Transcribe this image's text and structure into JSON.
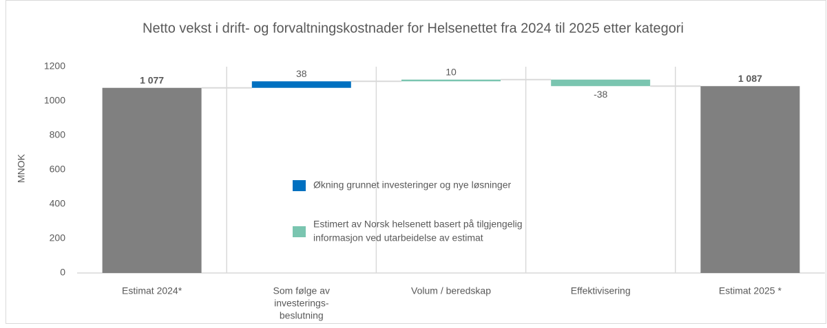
{
  "chart_data": {
    "type": "waterfall",
    "title": "Netto vekst i drift- og forvaltningskostnader for Helsenettet fra 2024 til 2025 etter kategori",
    "y_label": "MNOK",
    "categories": [
      [
        "Estimat 2024*"
      ],
      [
        "Som følge av",
        "investerings-",
        "beslutning"
      ],
      [
        "Volum / beredskap"
      ],
      [
        "Effektivisering"
      ],
      [
        "Estimat 2025 *"
      ]
    ],
    "measures": [
      "total",
      "relative",
      "relative",
      "relative",
      "total"
    ],
    "values": [
      1077,
      38,
      10,
      -38,
      1087
    ],
    "value_labels": [
      "1 077",
      "38",
      "10",
      "-38",
      "1 087"
    ],
    "colors": [
      "#808080",
      "#0070c0",
      "#7ac5b0",
      "#7ac5b0",
      "#808080"
    ],
    "legend": [
      {
        "label": [
          "Økning grunnet investeringer og nye løsninger"
        ],
        "color": "#0070c0"
      },
      {
        "label": [
          "Estimert av Norsk helsenett basert på tilgjengelig",
          "informasjon ved utarbeidelse av estimat"
        ],
        "color": "#7ac5b0"
      }
    ],
    "ylim": [
      0,
      1200
    ],
    "yticks": [
      0,
      200,
      400,
      600,
      800,
      1000,
      1200
    ]
  }
}
